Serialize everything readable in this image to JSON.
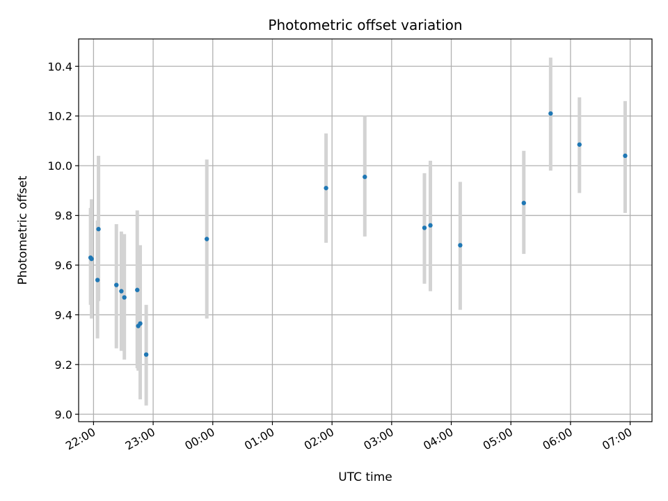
{
  "chart_data": {
    "type": "scatter",
    "title": "Photometric offset variation",
    "xlabel": "UTC time",
    "ylabel": "Photometric offset",
    "grid": true,
    "legend": "none",
    "x_unit": "UTC time (HH:MM)",
    "xlim": [
      "21:45",
      "07:22"
    ],
    "ylim": [
      8.97,
      10.51
    ],
    "x_ticks": [
      "22:00",
      "23:00",
      "00:00",
      "01:00",
      "02:00",
      "03:00",
      "04:00",
      "05:00",
      "06:00",
      "07:00"
    ],
    "y_ticks": [
      "9.0",
      "9.2",
      "9.4",
      "9.6",
      "9.8",
      "10.0",
      "10.2",
      "10.4"
    ],
    "points": [
      {
        "x": "21:57",
        "y": 9.63,
        "ylow": 9.44,
        "yhigh": 9.83
      },
      {
        "x": "21:58",
        "y": 9.625,
        "ylow": 9.385,
        "yhigh": 9.865
      },
      {
        "x": "22:04",
        "y": 9.54,
        "ylow": 9.305,
        "yhigh": 9.78
      },
      {
        "x": "22:05",
        "y": 9.745,
        "ylow": 9.455,
        "yhigh": 10.04
      },
      {
        "x": "22:23",
        "y": 9.52,
        "ylow": 9.265,
        "yhigh": 9.765
      },
      {
        "x": "22:28",
        "y": 9.495,
        "ylow": 9.255,
        "yhigh": 9.735
      },
      {
        "x": "22:31",
        "y": 9.47,
        "ylow": 9.22,
        "yhigh": 9.725
      },
      {
        "x": "22:44",
        "y": 9.5,
        "ylow": 9.185,
        "yhigh": 9.82
      },
      {
        "x": "22:45",
        "y": 9.355,
        "ylow": 9.175,
        "yhigh": 9.53
      },
      {
        "x": "22:47",
        "y": 9.365,
        "ylow": 9.06,
        "yhigh": 9.68
      },
      {
        "x": "22:53",
        "y": 9.24,
        "ylow": 9.035,
        "yhigh": 9.44
      },
      {
        "x": "23:54",
        "y": 9.705,
        "ylow": 9.385,
        "yhigh": 10.025
      },
      {
        "x": "01:54",
        "y": 9.91,
        "ylow": 9.69,
        "yhigh": 10.13
      },
      {
        "x": "02:33",
        "y": 9.955,
        "ylow": 9.715,
        "yhigh": 10.2
      },
      {
        "x": "03:33",
        "y": 9.75,
        "ylow": 9.525,
        "yhigh": 9.97
      },
      {
        "x": "03:39",
        "y": 9.76,
        "ylow": 9.495,
        "yhigh": 10.02
      },
      {
        "x": "04:09",
        "y": 9.68,
        "ylow": 9.42,
        "yhigh": 9.935
      },
      {
        "x": "05:13",
        "y": 9.85,
        "ylow": 9.645,
        "yhigh": 10.06
      },
      {
        "x": "05:40",
        "y": 10.21,
        "ylow": 9.98,
        "yhigh": 10.435
      },
      {
        "x": "06:09",
        "y": 10.085,
        "ylow": 9.89,
        "yhigh": 10.275
      },
      {
        "x": "06:55",
        "y": 10.04,
        "ylow": 9.81,
        "yhigh": 10.26
      }
    ],
    "colors": {
      "point": "#1f77b4",
      "errorbar": "#d3d3d3",
      "grid": "#b0b0b0",
      "axis": "#000000"
    }
  }
}
